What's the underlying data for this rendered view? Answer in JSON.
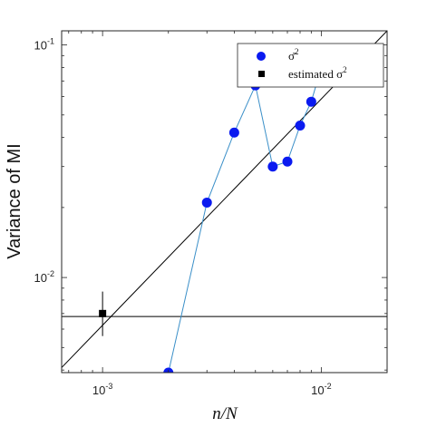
{
  "chart_data": {
    "type": "scatter",
    "title": "",
    "xlabel": "n/N",
    "ylabel": "Variance of MI",
    "xscale": "log",
    "yscale": "log",
    "xlim": [
      0.00065,
      0.02
    ],
    "ylim": [
      0.0039,
      0.115
    ],
    "grid": false,
    "legend_position": "top-right",
    "x_ticks": [
      {
        "value": 0.001,
        "base": "10",
        "exp": "-3"
      },
      {
        "value": 0.01,
        "base": "10",
        "exp": "-2"
      }
    ],
    "y_ticks": [
      {
        "value": 0.01,
        "base": "10",
        "exp": "-2"
      },
      {
        "value": 0.1,
        "base": "10",
        "exp": "-1"
      }
    ],
    "series": [
      {
        "name": "σ̄²",
        "legend_base": "σ̄",
        "legend_exp": "2",
        "marker": "circle",
        "color": "#0a1af0",
        "line_color": "#3a8fc8",
        "x": [
          0.002,
          0.003,
          0.004,
          0.005,
          0.006,
          0.007,
          0.008,
          0.009,
          0.01
        ],
        "y": [
          0.0039,
          0.021,
          0.042,
          0.067,
          0.03,
          0.0315,
          0.045,
          0.057,
          0.08
        ]
      },
      {
        "name": "estimated σ²",
        "legend_text": "estimated σ",
        "legend_exp": "2",
        "marker": "square",
        "color": "#000000",
        "x": [
          0.001
        ],
        "y": [
          0.007
        ],
        "y_error": [
          [
            0.0056,
            0.0087
          ]
        ]
      }
    ],
    "reference_lines": [
      {
        "kind": "horizontal",
        "y": 0.0068,
        "color": "#000000"
      },
      {
        "kind": "diagonal",
        "points": [
          [
            0.00065,
            0.0041
          ],
          [
            0.02,
            0.115
          ]
        ],
        "color": "#000000"
      }
    ]
  }
}
